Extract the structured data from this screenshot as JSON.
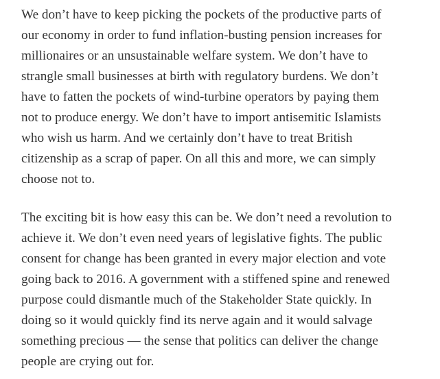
{
  "paragraphs": [
    {
      "lines": [
        "We don’t have to keep picking the pockets of the productive parts of",
        "our economy in order to fund inflation-busting pension increases for",
        "millionaires or an unsustainable welfare system. We don’t have to",
        "strangle small businesses at birth with regulatory burdens. We don’t",
        "have to fatten the pockets of wind-turbine operators by paying them",
        "not to produce energy. We don’t have to import antisemitic Islamists",
        "who wish us harm. And we certainly don’t have to treat British",
        "citizenship as a scrap of paper. On all this and more, we can simply",
        "choose not to."
      ]
    },
    {
      "lines": [
        "The exciting bit is how easy this can be. We don’t need a revolution to",
        "achieve it. We don’t even need years of legislative fights. The public",
        "consent for change has been granted in every major election and vote",
        "going back to 2016. A government with a stiffened spine and renewed",
        "purpose could dismantle much of the Stakeholder State quickly. In",
        "doing so it would quickly find its nerve again and it would salvage",
        "something precious — the sense that politics can deliver the change",
        "people are crying out for."
      ]
    }
  ]
}
